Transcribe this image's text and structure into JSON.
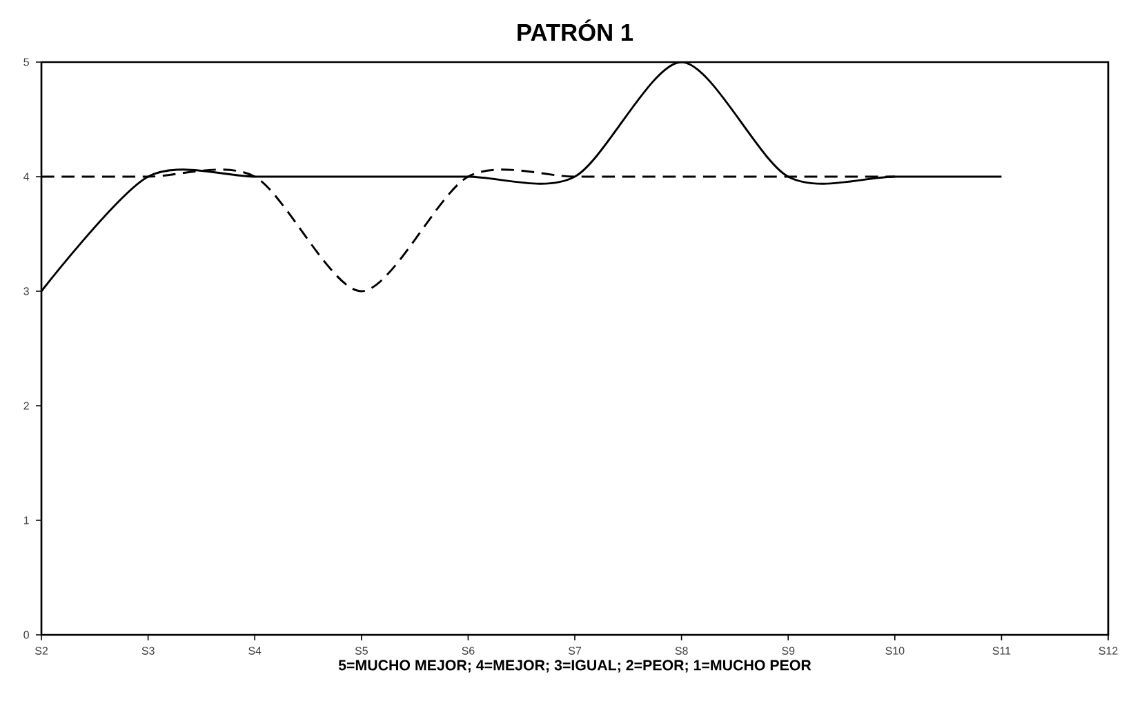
{
  "chart_data": {
    "type": "line",
    "title": "PATRÓN 1",
    "xlabel": "5=MUCHO MEJOR; 4=MEJOR; 3=IGUAL; 2=PEOR; 1=MUCHO PEOR",
    "categories": [
      "S2",
      "S3",
      "S4",
      "S5",
      "S6",
      "S7",
      "S8",
      "S9",
      "S10",
      "S11",
      "S12"
    ],
    "series": [
      {
        "color": "#000000",
        "line_style": "solid",
        "values": [
          3,
          4,
          4,
          4,
          4,
          4,
          5,
          4,
          4,
          4,
          null
        ]
      },
      {
        "color": "#000000",
        "line_style": "dashed",
        "values": [
          4,
          4,
          4,
          3,
          4,
          4,
          4,
          4,
          4,
          null,
          null
        ]
      }
    ],
    "ylim": [
      0,
      5
    ],
    "yticks": [
      0,
      1,
      2,
      3,
      4,
      5
    ],
    "grid": false,
    "marker": "none"
  }
}
